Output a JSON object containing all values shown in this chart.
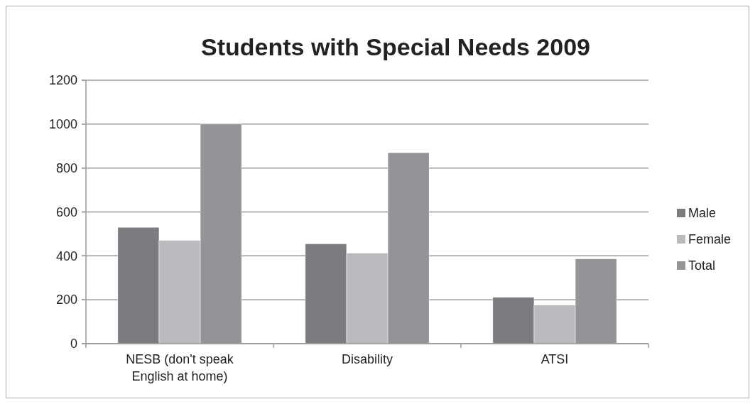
{
  "chart_data": {
    "type": "bar",
    "title": "Students with Special Needs 2009",
    "categories": [
      "NESB (don't speak English at home)",
      "Disability",
      "ATSI"
    ],
    "series": [
      {
        "name": "Male",
        "color": "#7b7c80",
        "values": [
          530,
          455,
          211
        ]
      },
      {
        "name": "Female",
        "color": "#b9babd",
        "values": [
          470,
          413,
          176
        ]
      },
      {
        "name": "Total",
        "color": "#939497",
        "values": [
          1000,
          870,
          386
        ]
      }
    ],
    "ylim": [
      0,
      1200
    ],
    "yticks": [
      0,
      200,
      400,
      600,
      800,
      1000,
      1200
    ],
    "grid": "y",
    "legend": "right"
  }
}
